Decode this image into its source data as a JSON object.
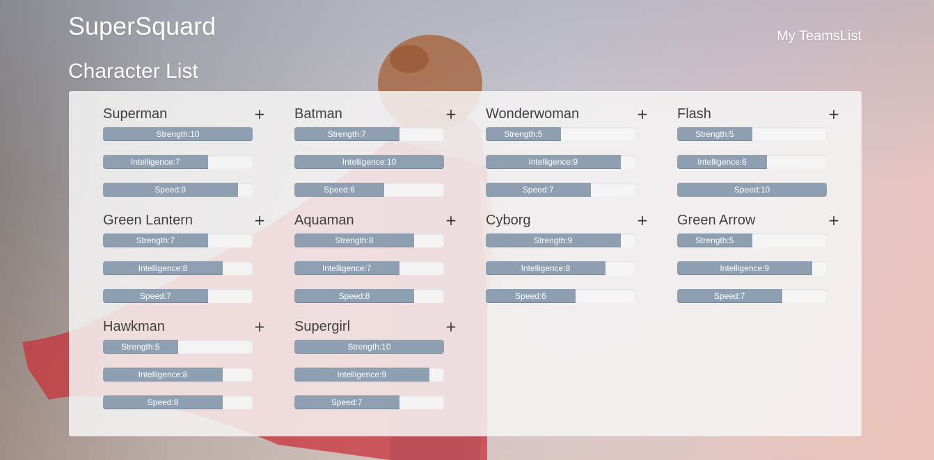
{
  "header": {
    "brand": "SuperSquard",
    "nav_link": "My TeamsList"
  },
  "section_title": "Character List",
  "add_symbol": "+",
  "stat_max": 10,
  "colors": {
    "bar_fill": "#8e9fb1",
    "bar_track": "#f5f5f5",
    "panel": "#f6f4f4",
    "cape": "#c8323a"
  },
  "characters": [
    {
      "name": "Superman",
      "stats": [
        {
          "label": "Strength",
          "value": 10
        },
        {
          "label": "Intelligence",
          "value": 7
        },
        {
          "label": "Speed",
          "value": 9
        }
      ]
    },
    {
      "name": "Batman",
      "stats": [
        {
          "label": "Strength",
          "value": 7
        },
        {
          "label": "Intelligence",
          "value": 10
        },
        {
          "label": "Speed",
          "value": 6
        }
      ]
    },
    {
      "name": "Wonderwoman",
      "stats": [
        {
          "label": "Strength",
          "value": 5
        },
        {
          "label": "Intelligence",
          "value": 9
        },
        {
          "label": "Speed",
          "value": 7
        }
      ]
    },
    {
      "name": "Flash",
      "stats": [
        {
          "label": "Strength",
          "value": 5
        },
        {
          "label": "Intelligence",
          "value": 6
        },
        {
          "label": "Speed",
          "value": 10
        }
      ]
    },
    {
      "name": "Green Lantern",
      "stats": [
        {
          "label": "Strength",
          "value": 7
        },
        {
          "label": "Intelligence",
          "value": 8
        },
        {
          "label": "Speed",
          "value": 7
        }
      ]
    },
    {
      "name": "Aquaman",
      "stats": [
        {
          "label": "Strength",
          "value": 8
        },
        {
          "label": "Intelligence",
          "value": 7
        },
        {
          "label": "Speed",
          "value": 8
        }
      ]
    },
    {
      "name": "Cyborg",
      "stats": [
        {
          "label": "Strength",
          "value": 9
        },
        {
          "label": "Intelligence",
          "value": 8
        },
        {
          "label": "Speed",
          "value": 6
        }
      ]
    },
    {
      "name": "Green Arrow",
      "stats": [
        {
          "label": "Strength",
          "value": 5
        },
        {
          "label": "Intelligence",
          "value": 9
        },
        {
          "label": "Speed",
          "value": 7
        }
      ]
    },
    {
      "name": "Hawkman",
      "stats": [
        {
          "label": "Strength",
          "value": 5
        },
        {
          "label": "Intelligence",
          "value": 8
        },
        {
          "label": "Speed",
          "value": 8
        }
      ]
    },
    {
      "name": "Supergirl",
      "stats": [
        {
          "label": "Strength",
          "value": 10
        },
        {
          "label": "Intelligence",
          "value": 9
        },
        {
          "label": "Speed",
          "value": 7
        }
      ]
    }
  ]
}
